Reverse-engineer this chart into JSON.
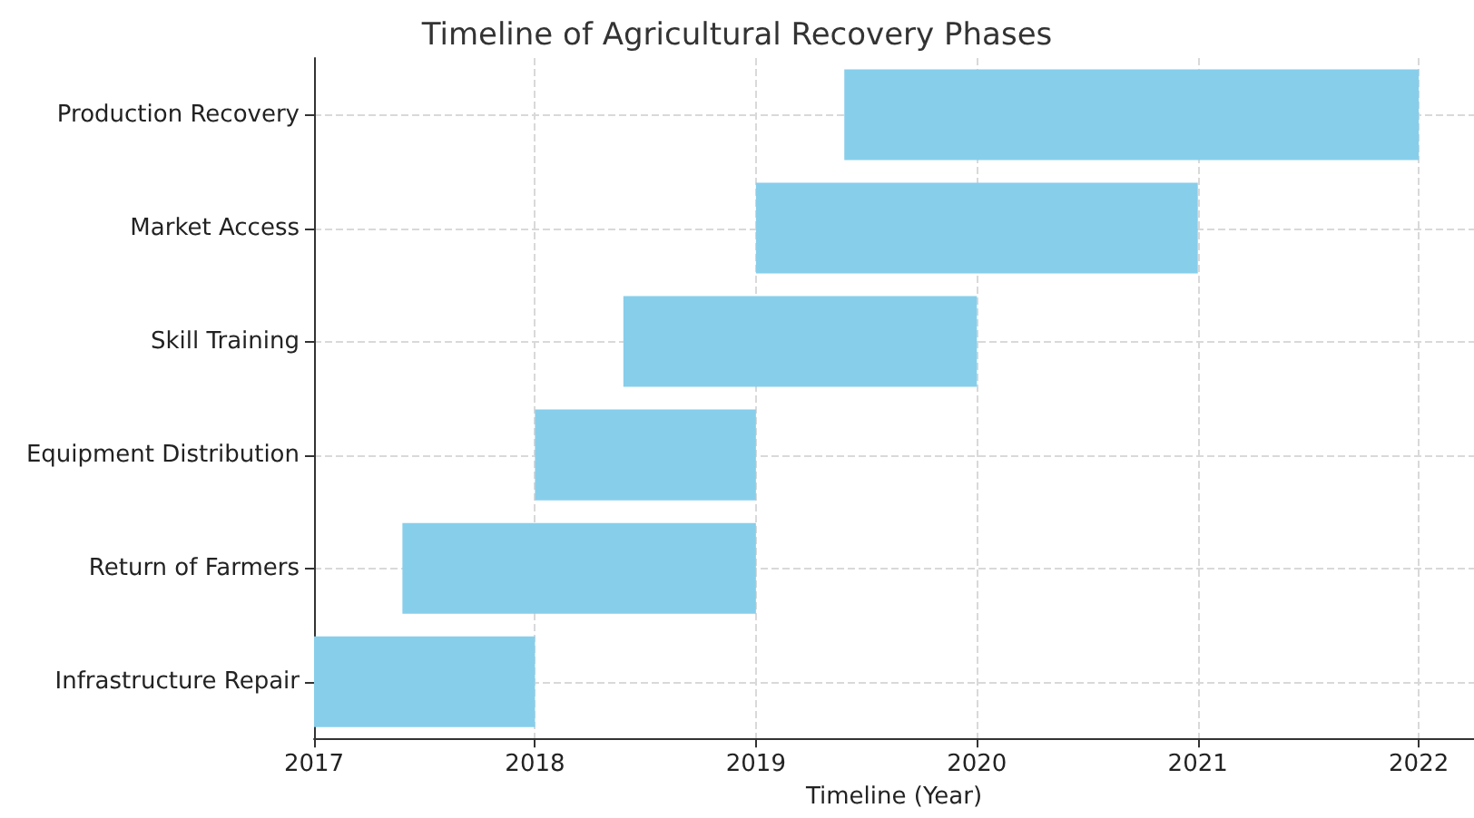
{
  "chart_data": {
    "type": "bar",
    "orientation": "horizontal",
    "title": "Timeline of Agricultural Recovery Phases",
    "xlabel": "Timeline (Year)",
    "categories": [
      "Production Recovery",
      "Market Access",
      "Skill Training",
      "Equipment Distribution",
      "Return of Farmers",
      "Infrastructure Repair"
    ],
    "base": [
      2019.4,
      2019,
      2018.4,
      2018,
      2017.4,
      2017
    ],
    "values": [
      2.6,
      2,
      1.6,
      1,
      1.6,
      1
    ],
    "color": "#87ceeb",
    "xlim": [
      2017,
      2022.25
    ],
    "xticks": [
      2017,
      2018,
      2019,
      2020,
      2021,
      2022
    ],
    "grid": true
  }
}
